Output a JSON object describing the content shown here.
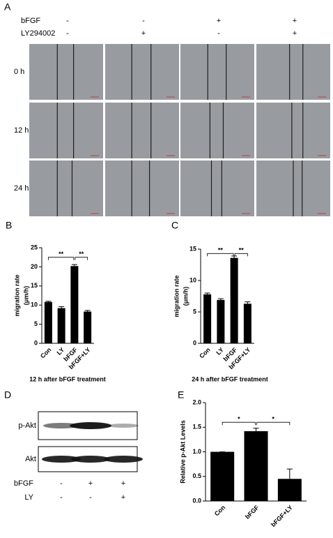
{
  "panel_a": {
    "label": "A",
    "treatments": [
      {
        "name": "bFGF",
        "signs": [
          "-",
          "-",
          "+",
          "+"
        ]
      },
      {
        "name": "LY294002",
        "signs": [
          "-",
          "+",
          "-",
          "+"
        ]
      }
    ],
    "times": [
      "0 h",
      "12 h",
      "24 h"
    ]
  },
  "chart_data": [
    {
      "type": "bar",
      "panel": "B",
      "subtitle": "12 h after bFGF treatment",
      "ylabel": [
        "migration rate",
        "(μm/h)"
      ],
      "categories": [
        "Con",
        "LY",
        "bFGF",
        "bFGF+LY"
      ],
      "values": [
        10.8,
        9.2,
        20.2,
        8.3
      ],
      "errors": [
        0.2,
        0.4,
        0.4,
        0.3
      ],
      "color": "#000000",
      "ylim": [
        0,
        25
      ],
      "yticks": [
        0,
        5,
        10,
        15,
        20,
        25
      ],
      "annotations": [
        "**",
        "**"
      ]
    },
    {
      "type": "bar",
      "panel": "C",
      "subtitle": "24 h after bFGF treatment",
      "ylabel": [
        "migration rate",
        "(μm/h)"
      ],
      "categories": [
        "Con",
        "LY",
        "bFGF",
        "bFGF+LY"
      ],
      "values": [
        7.8,
        6.9,
        13.6,
        6.3
      ],
      "errors": [
        0.2,
        0.2,
        0.3,
        0.3
      ],
      "color": "#000000",
      "ylim": [
        0,
        15
      ],
      "yticks": [
        0,
        5,
        10,
        15
      ],
      "annotations": [
        "**",
        "**"
      ]
    },
    {
      "type": "bar",
      "panel": "E",
      "ylabel": [
        "Relative p-Akt Levels"
      ],
      "categories": [
        "Con",
        "bFGF",
        "bFGF+LY"
      ],
      "values": [
        1.0,
        1.42,
        0.45
      ],
      "errors": [
        0,
        0.06,
        0.2
      ],
      "color": "#000000",
      "ylim": [
        0,
        2
      ],
      "yticks": [
        {
          "value": 0,
          "label": "0.0"
        },
        0.5,
        {
          "value": 1,
          "label": "1.0"
        },
        1.5,
        {
          "value": 2,
          "label": "2.0"
        }
      ],
      "annotations": [
        "*",
        "*"
      ]
    }
  ],
  "panel_d": {
    "label": "D",
    "blots": [
      "p-Akt",
      "Akt"
    ],
    "treatments": [
      {
        "name": "bFGF",
        "signs": [
          "-",
          "+",
          "+"
        ]
      },
      {
        "name": "LY",
        "signs": [
          "-",
          "-",
          "+"
        ]
      }
    ]
  }
}
